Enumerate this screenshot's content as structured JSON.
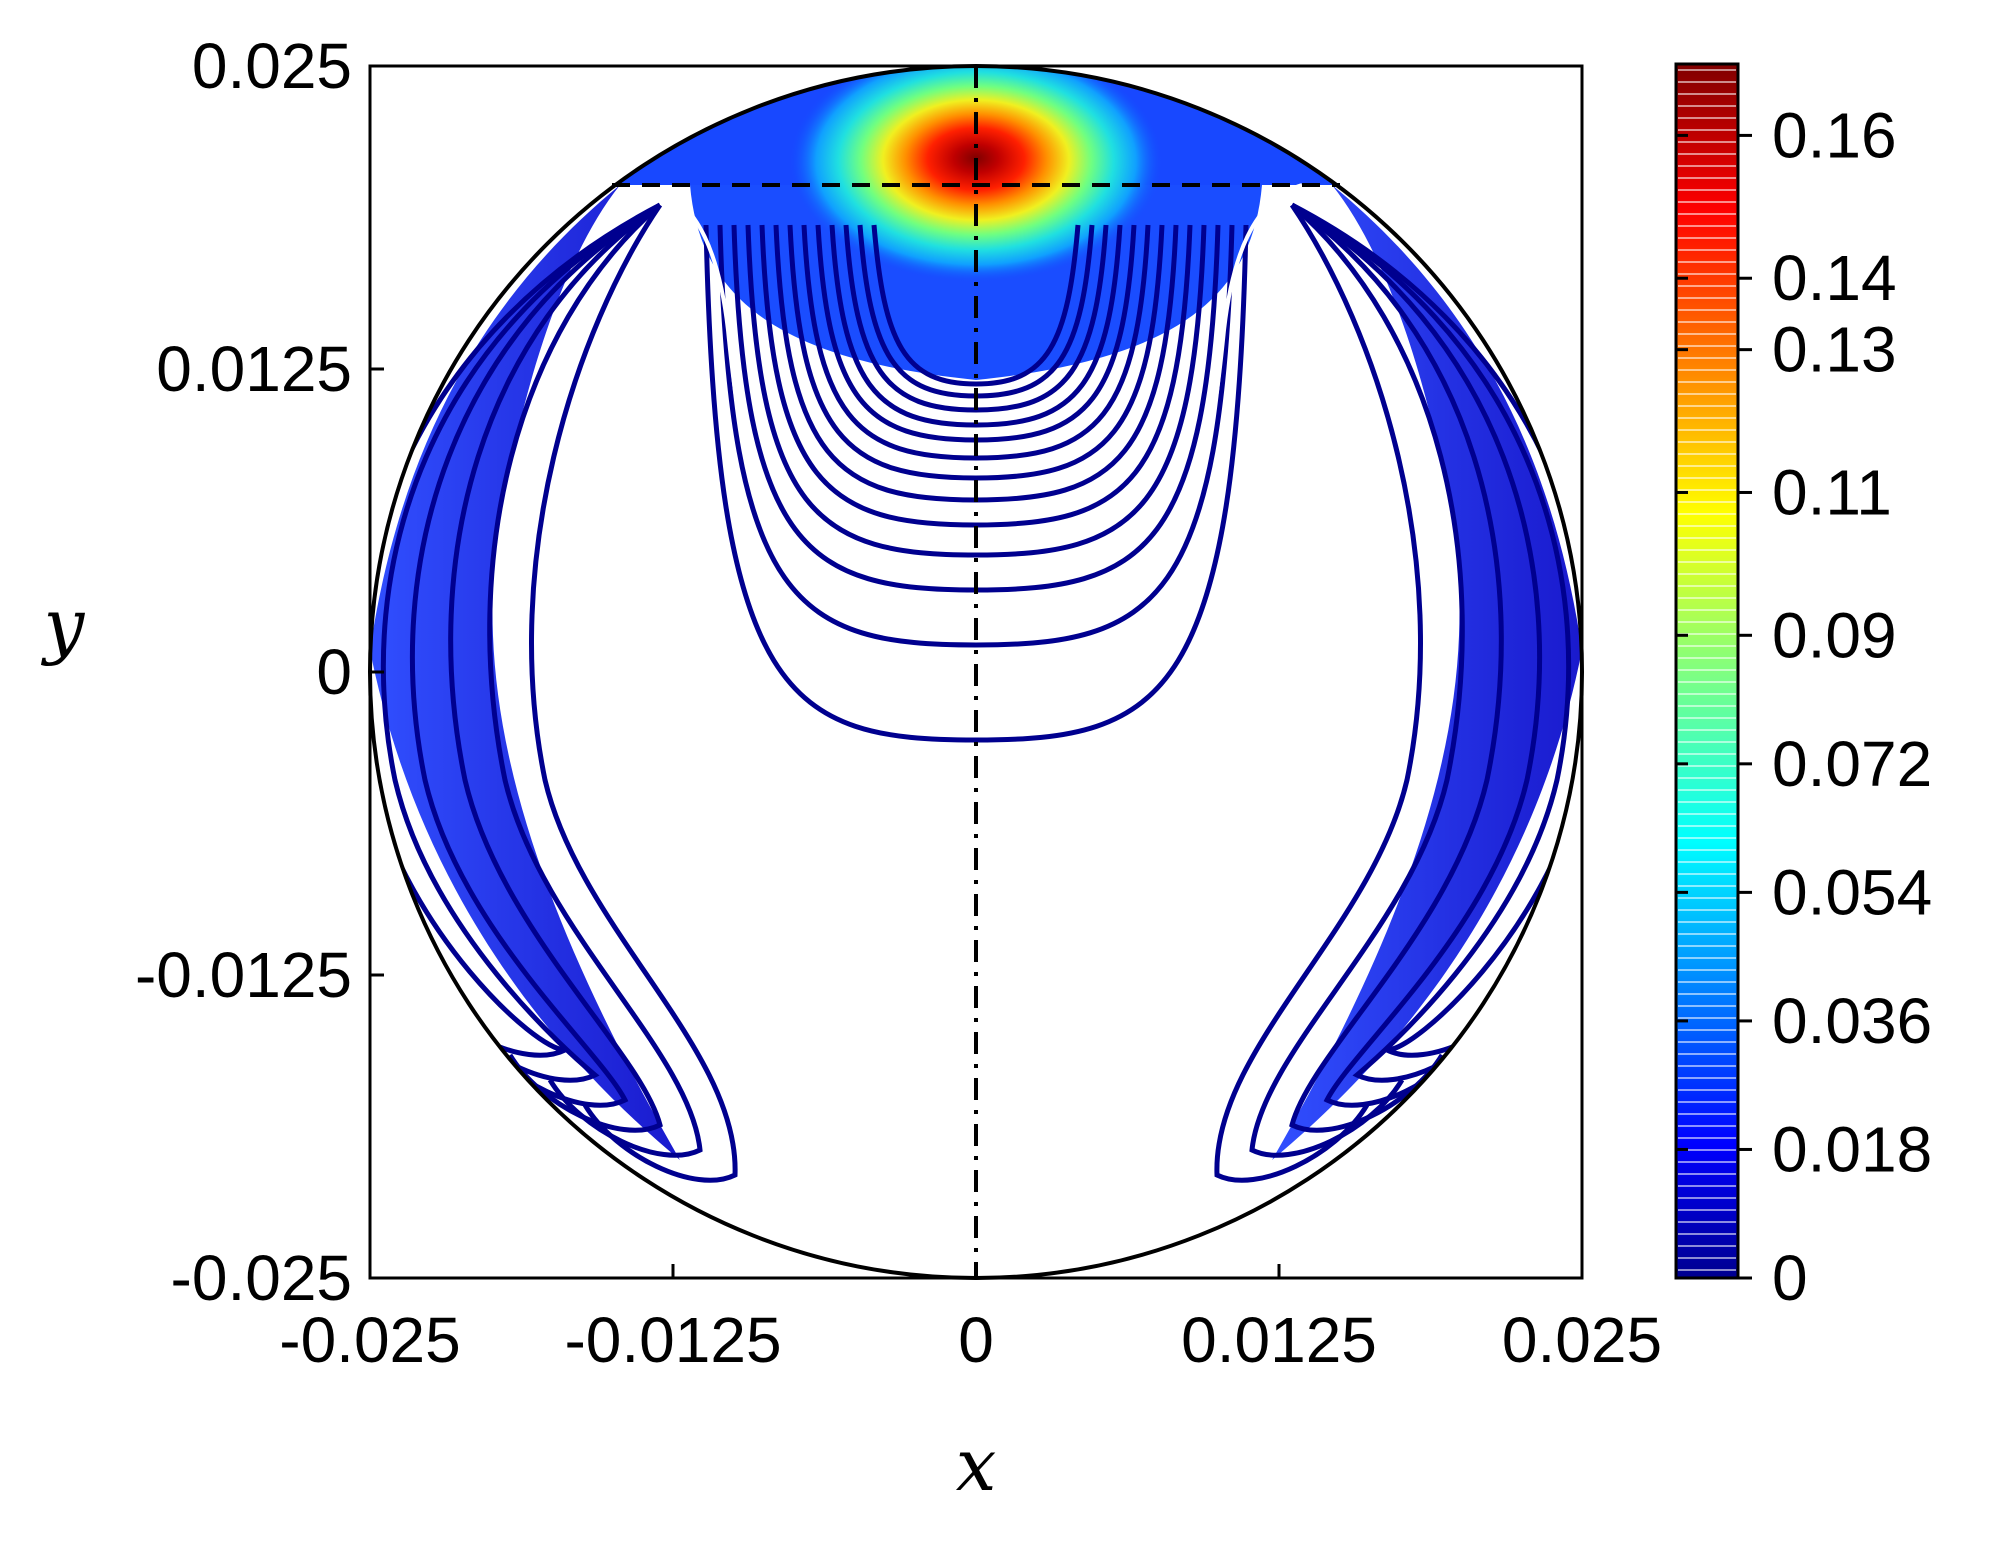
{
  "chart_data": {
    "type": "contour",
    "xlabel": "x",
    "ylabel": "y",
    "xlim": [
      -0.025,
      0.025
    ],
    "ylim": [
      -0.025,
      0.025
    ],
    "x_ticks": [
      "-0.025",
      "-0.0125",
      "0",
      "0.0125",
      "0.025"
    ],
    "y_ticks": [
      "0.025",
      "0.0125",
      "0",
      "-0.0125",
      "-0.025"
    ],
    "colorbar": {
      "range": [
        0,
        0.17
      ],
      "ticks": [
        "0.16",
        "0.14",
        "0.13",
        "0.11",
        "0.09",
        "0.072",
        "0.054",
        "0.036",
        "0.018",
        "0"
      ],
      "colormap": "jet"
    },
    "domain": {
      "shape": "circle",
      "center": [
        0,
        0
      ],
      "radius": 0.025
    },
    "peak": {
      "x": 0,
      "y": 0.0205,
      "value": 0.17
    },
    "reference_lines": [
      {
        "style": "dashed",
        "orientation": "horizontal",
        "y": 0.0201
      },
      {
        "style": "dash-dot",
        "orientation": "vertical",
        "x": 0
      }
    ],
    "grid": false,
    "colors": {
      "low": "#00008f",
      "high": "#800000",
      "axes": "#000000"
    }
  }
}
